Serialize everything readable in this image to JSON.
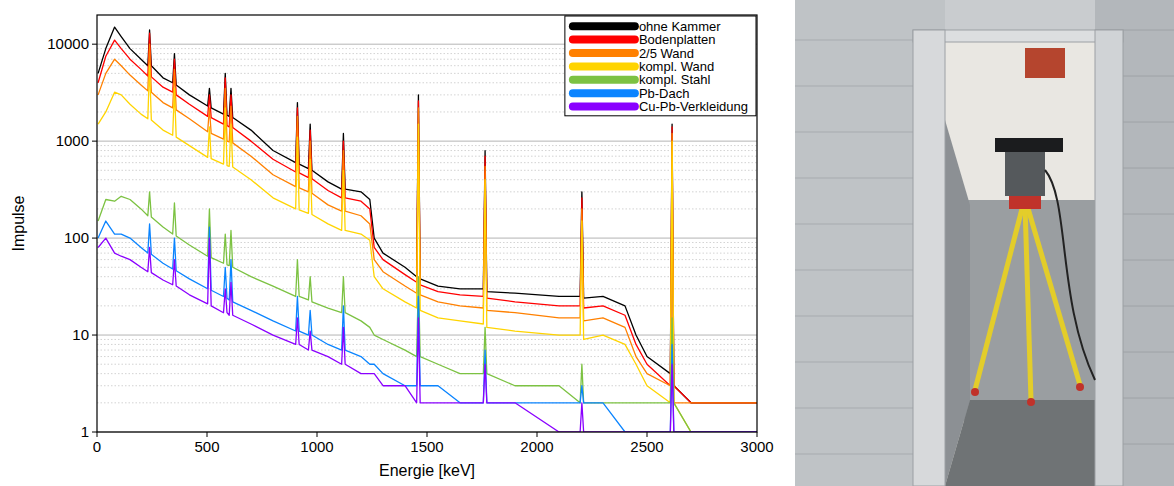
{
  "chart_data": {
    "type": "line",
    "x_label": "Energie [keV]",
    "y_label": "Impulse",
    "log": "y",
    "grid": true,
    "legend": "upper right",
    "xlim": [
      0,
      3000
    ],
    "xticks": [
      0,
      500,
      1000,
      1500,
      2000,
      2500,
      3000
    ],
    "ylim": [
      1,
      20000
    ],
    "yticks": [
      1,
      10,
      100,
      1000,
      10000
    ],
    "x": [
      5,
      40,
      80,
      110,
      150,
      200,
      231,
      239,
      247,
      300,
      344,
      352,
      360,
      420,
      503,
      511,
      519,
      575,
      583,
      591,
      601,
      609,
      617,
      700,
      800,
      903,
      911,
      919,
      961,
      969,
      977,
      1050,
      1112,
      1120,
      1128,
      1200,
      1240,
      1260,
      1300,
      1400,
      1453,
      1461,
      1469,
      1550,
      1650,
      1756,
      1764,
      1772,
      1900,
      2100,
      2196,
      2204,
      2212,
      2300,
      2400,
      2450,
      2500,
      2606,
      2614,
      2622,
      2700,
      2900,
      3000
    ],
    "series": [
      {
        "name": "ohne Kammer",
        "color": "#000000",
        "values": [
          5000,
          9000,
          15000,
          12000,
          9000,
          7000,
          6000,
          14000,
          6000,
          4500,
          4000,
          8000,
          3800,
          3000,
          2300,
          3500,
          2200,
          1900,
          5000,
          1850,
          1800,
          3500,
          1750,
          1300,
          800,
          600,
          2500,
          580,
          520,
          1500,
          500,
          380,
          320,
          1200,
          320,
          300,
          250,
          100,
          70,
          50,
          40,
          3000,
          38,
          32,
          30,
          30,
          800,
          28,
          27,
          25,
          25,
          300,
          24,
          25,
          20,
          10,
          6,
          4,
          1500,
          3,
          2,
          2,
          2
        ]
      },
      {
        "name": "Bodenplatten",
        "color": "#ff0000",
        "values": [
          4000,
          7500,
          11000,
          9000,
          7000,
          5500,
          4700,
          13000,
          4600,
          3600,
          3200,
          7000,
          3000,
          2400,
          1800,
          3000,
          1750,
          1500,
          4500,
          1450,
          1400,
          3000,
          1380,
          1000,
          650,
          480,
          2200,
          470,
          420,
          1300,
          410,
          310,
          260,
          1000,
          260,
          240,
          200,
          80,
          60,
          42,
          35,
          2600,
          33,
          28,
          26,
          25,
          700,
          24,
          22,
          20,
          20,
          260,
          19,
          20,
          16,
          8,
          5,
          3,
          1400,
          3,
          2,
          2,
          2
        ]
      },
      {
        "name": "2/5 Wand",
        "color": "#ff8000",
        "values": [
          3000,
          5000,
          7000,
          6000,
          4800,
          3800,
          3300,
          10000,
          3200,
          2500,
          2200,
          5500,
          2100,
          1700,
          1250,
          2200,
          1200,
          1050,
          3500,
          1000,
          980,
          2300,
          960,
          700,
          450,
          340,
          1800,
          330,
          300,
          1000,
          290,
          220,
          190,
          800,
          190,
          170,
          140,
          60,
          45,
          32,
          27,
          2200,
          26,
          22,
          20,
          19,
          550,
          18,
          17,
          15,
          15,
          200,
          14,
          15,
          12,
          6,
          4,
          3,
          1200,
          2,
          2,
          2,
          2
        ]
      },
      {
        "name": "kompl. Wand",
        "color": "#ffd400",
        "values": [
          1500,
          2000,
          3200,
          3000,
          2400,
          1900,
          1700,
          6000,
          1650,
          1300,
          1150,
          3500,
          1100,
          900,
          680,
          1400,
          660,
          580,
          2200,
          560,
          550,
          1500,
          540,
          400,
          260,
          200,
          1100,
          195,
          180,
          650,
          175,
          140,
          120,
          500,
          120,
          110,
          95,
          40,
          30,
          22,
          19,
          1500,
          18,
          15,
          14,
          13,
          400,
          12,
          11,
          10,
          10,
          150,
          9,
          10,
          8,
          5,
          3,
          2,
          1000,
          2,
          1,
          1,
          1
        ]
      },
      {
        "name": "kompl. Stahl",
        "color": "#7cc242",
        "values": [
          150,
          250,
          240,
          270,
          250,
          200,
          170,
          300,
          165,
          130,
          110,
          230,
          105,
          85,
          65,
          200,
          63,
          55,
          110,
          53,
          52,
          120,
          50,
          40,
          32,
          25,
          60,
          25,
          23,
          40,
          22,
          19,
          17,
          40,
          17,
          14,
          12,
          10,
          9,
          7,
          6,
          40,
          6,
          5,
          4,
          4,
          12,
          4,
          3,
          3,
          2,
          5,
          2,
          2,
          2,
          2,
          2,
          2,
          15,
          2,
          1,
          1,
          1
        ]
      },
      {
        "name": "Pb-Dach",
        "color": "#0a84ff",
        "values": [
          100,
          150,
          110,
          110,
          100,
          80,
          70,
          140,
          68,
          55,
          48,
          100,
          46,
          38,
          30,
          130,
          29,
          25,
          50,
          24,
          23,
          60,
          22,
          18,
          14,
          11,
          25,
          11,
          10,
          18,
          10,
          8,
          7,
          20,
          7,
          6,
          5,
          5,
          4,
          3,
          3,
          25,
          3,
          3,
          2,
          2,
          7,
          2,
          2,
          2,
          2,
          3,
          2,
          2,
          1,
          1,
          1,
          1,
          8,
          1,
          1,
          1,
          1
        ]
      },
      {
        "name": "Cu-Pb-Verkleidung",
        "color": "#8a00ff",
        "values": [
          80,
          100,
          70,
          65,
          60,
          50,
          45,
          80,
          44,
          37,
          33,
          60,
          32,
          26,
          21,
          100,
          20,
          17,
          30,
          17,
          16,
          35,
          16,
          13,
          10,
          8,
          15,
          8,
          7,
          11,
          7,
          6,
          5,
          12,
          5,
          4,
          4,
          4,
          3,
          3,
          2,
          15,
          2,
          2,
          2,
          2,
          5,
          2,
          2,
          1,
          1,
          2,
          1,
          1,
          1,
          1,
          1,
          1,
          5,
          1,
          1,
          1,
          1
        ]
      }
    ]
  }
}
